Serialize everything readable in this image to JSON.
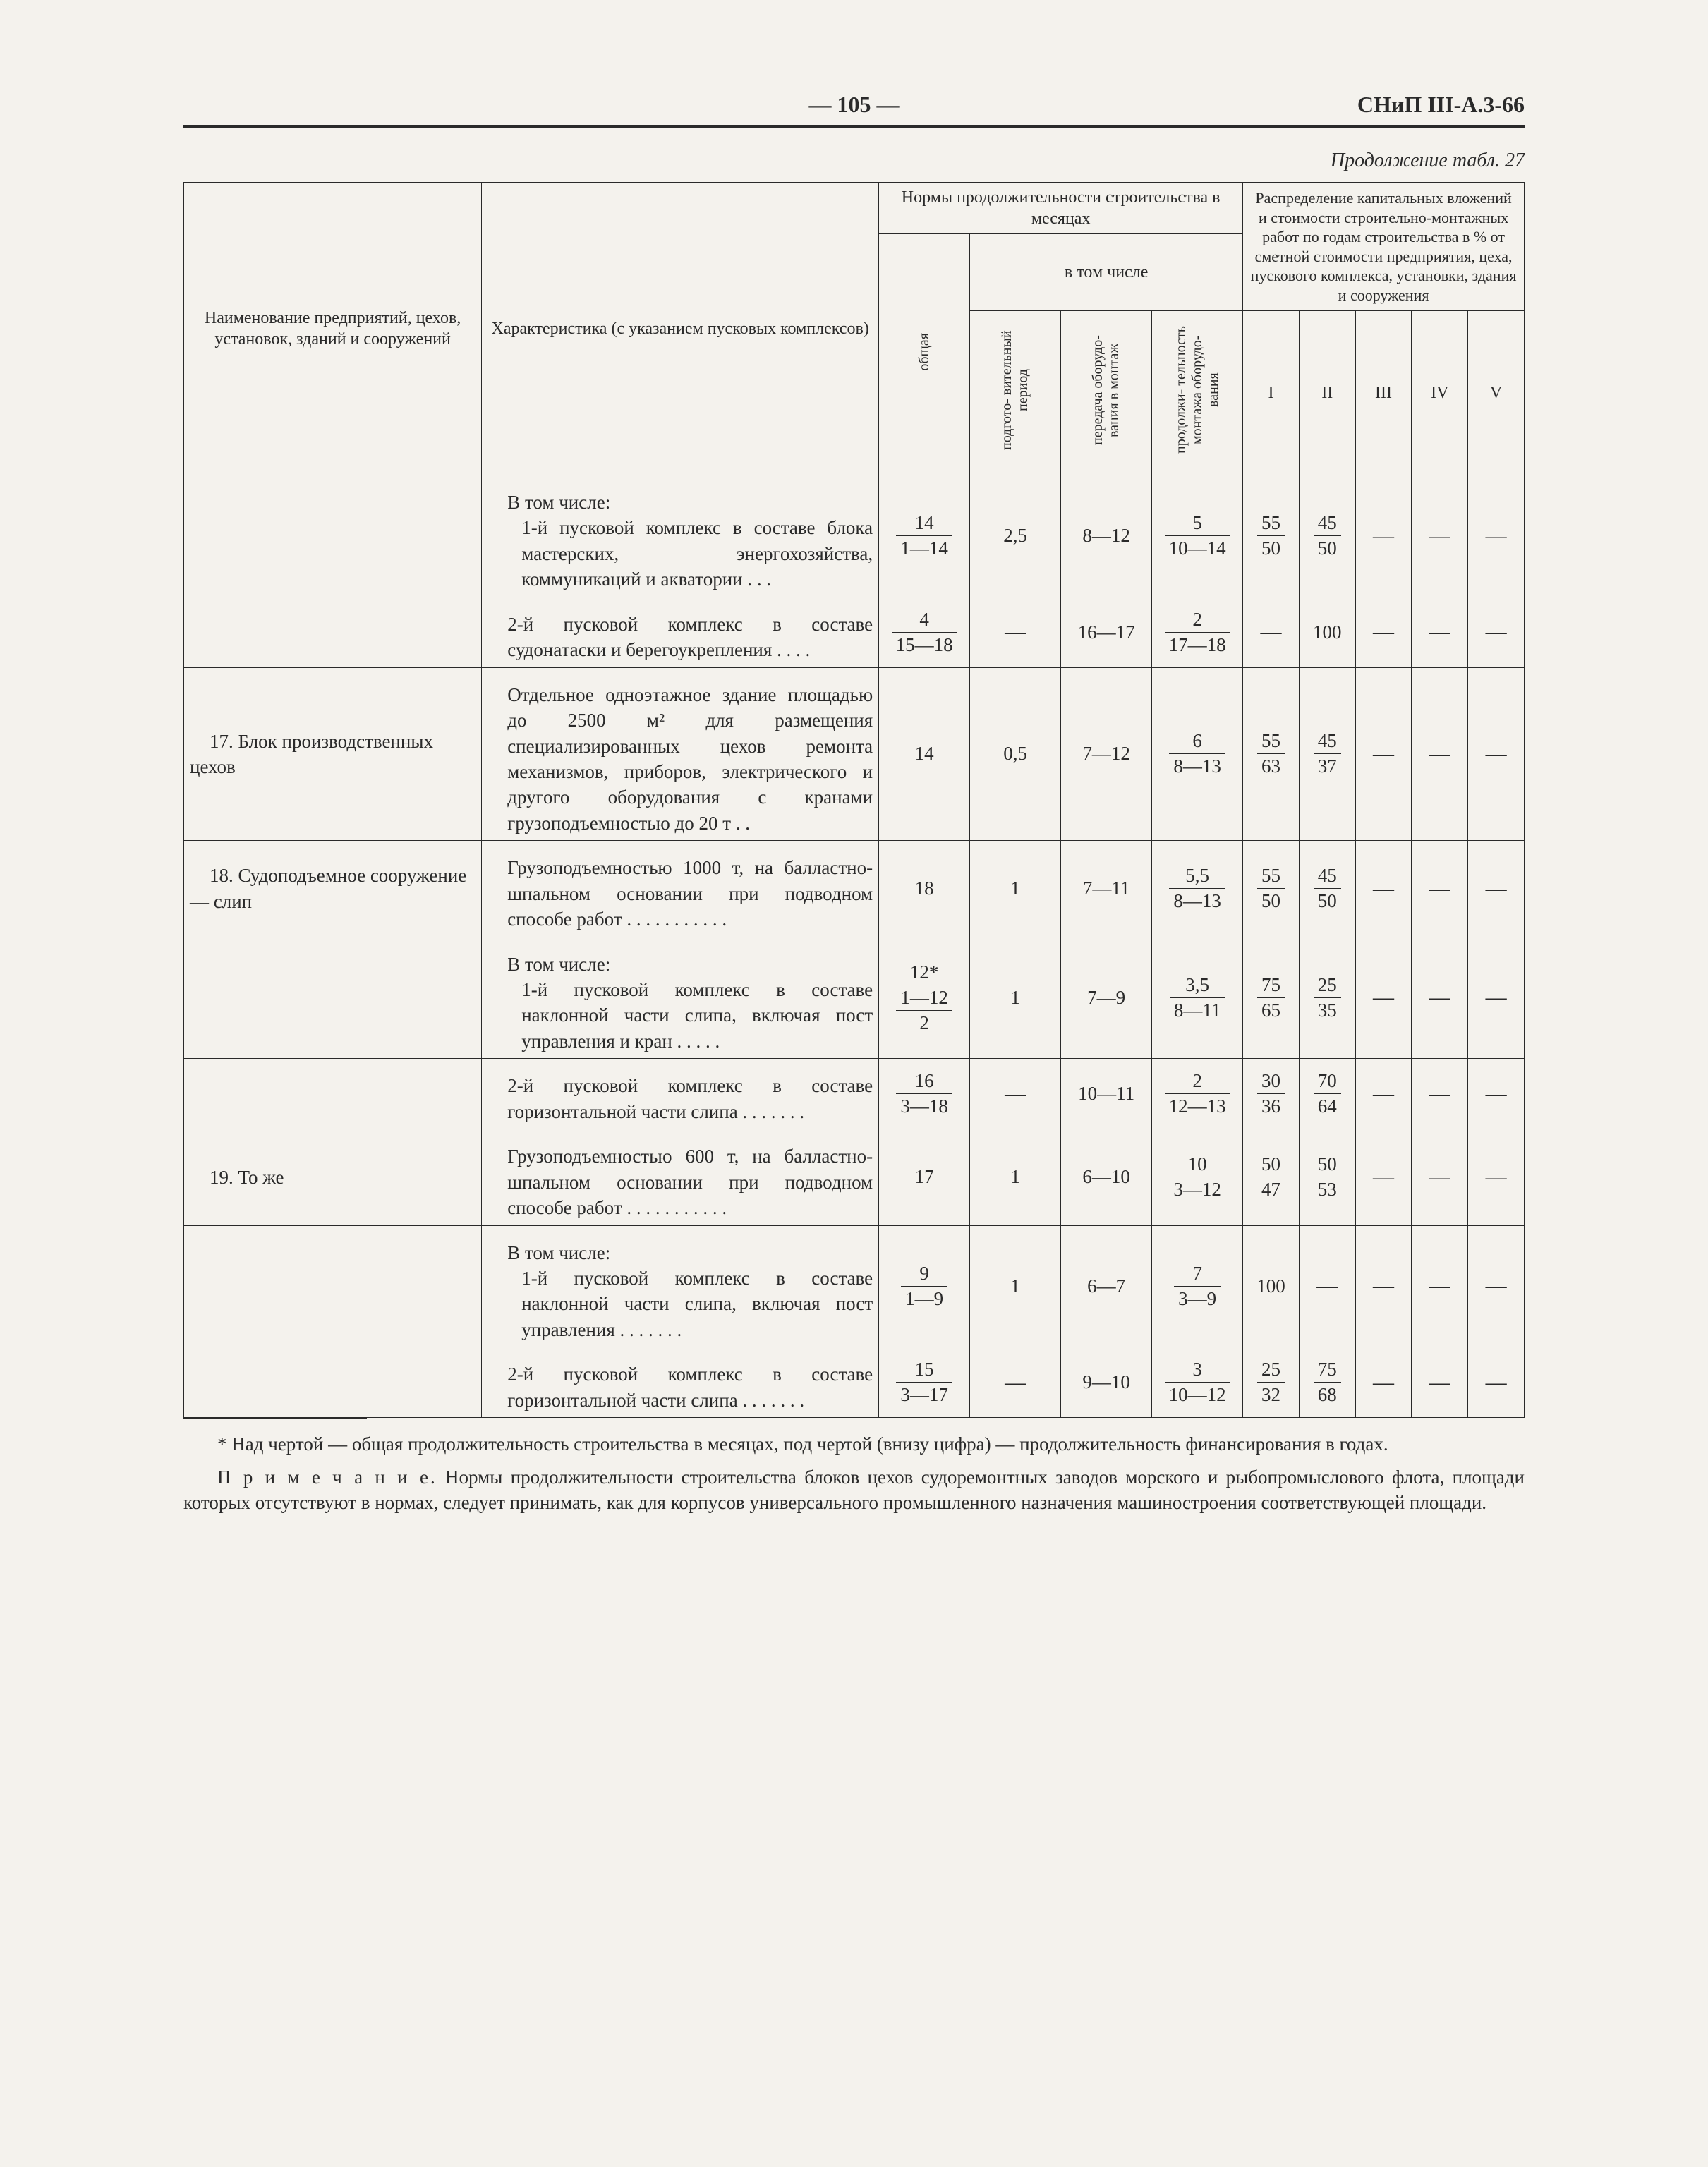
{
  "page_meta": {
    "page_number_label": "— 105 —",
    "doc_code": "СНиП III-А.3-66",
    "continuation_label": "Продолжение табл. 27"
  },
  "headers": {
    "col_name": "Наименование предприятий, цехов, установок, зданий и сооружений",
    "col_char": "Характеристика (с указанием пусковых комплексов)",
    "norms_group": "Нормы продолжительности строительства в месяцах",
    "inthat": "в   том числе",
    "total": "общая",
    "prep": "подгото-\nвительный\nпериод",
    "transfer": "передача\nоборудо-\nвания\nв монтаж",
    "duration": "продолжи-\nтельность\nмонтажа\nоборудо-\nвания",
    "dist_group": "Распределение капитальных вложений и стоимости строительно-монтажных работ по годам строительства в % от сметной стоимости предприятия, цеха, пускового комплекса, установки, здания и сооружения",
    "y1": "I",
    "y2": "II",
    "y3": "III",
    "y4": "IV",
    "y5": "V"
  },
  "rows": [
    {
      "name": "",
      "char_pre": "В том числе:",
      "char": "1-й пусковой комплекс в составе блока мастерских, энергохозяйства, коммуникаций и акватории  .  .  .",
      "total": {
        "n": "14",
        "d": "1—14"
      },
      "prep": "2,5",
      "transfer": "8—12",
      "dur": {
        "n": "5",
        "d": "10—14"
      },
      "y": [
        {
          "n": "55",
          "d": "50"
        },
        {
          "n": "45",
          "d": "50"
        },
        "—",
        "—",
        "—"
      ]
    },
    {
      "name": "",
      "char": "2-й пусковой комплекс в составе судонатаски и берегоукрепления   .   .   .   .",
      "total": {
        "n": "4",
        "d": "15—18"
      },
      "prep": "—",
      "transfer": "16—17",
      "dur": {
        "n": "2",
        "d": "17—18"
      },
      "y": [
        "—",
        "100",
        "—",
        "—",
        "—"
      ]
    },
    {
      "name": "17. Блок   производственных цехов",
      "char": "Отдельное одноэтажное здание площадью до 2500 м² для размещения специализированных цехов ремонта механизмов, приборов, электрического и другого оборудования с кранами грузоподъемностью до 20 т  .  .",
      "total": "14",
      "prep": "0,5",
      "transfer": "7—12",
      "dur": {
        "n": "6",
        "d": "8—13"
      },
      "y": [
        {
          "n": "55",
          "d": "63"
        },
        {
          "n": "45",
          "d": "37"
        },
        "—",
        "—",
        "—"
      ]
    },
    {
      "name": "18. Судоподъемное сооружение — слип",
      "char": "Грузоподъемностью   1000   т, на балластно-шпальном основании при подводном способе работ  .  .  .  .  .  .  .  .  .  .  .",
      "total": "18",
      "prep": "1",
      "transfer": "7—11",
      "dur": {
        "n": "5,5",
        "d": "8—13"
      },
      "y": [
        {
          "n": "55",
          "d": "50"
        },
        {
          "n": "45",
          "d": "50"
        },
        "—",
        "—",
        "—"
      ]
    },
    {
      "name": "",
      "char_pre": "В том числе:",
      "char": "1-й пусковой комплекс в составе наклонной части слипа, включая пост управления и кран  .  .  .  .  .",
      "total": {
        "n": "12*",
        "d": "1—12",
        "d2": "2"
      },
      "prep": "1",
      "transfer": "7—9",
      "dur": {
        "n": "3,5",
        "d": "8—11"
      },
      "y": [
        {
          "n": "75",
          "d": "65"
        },
        {
          "n": "25",
          "d": "35"
        },
        "—",
        "—",
        "—"
      ]
    },
    {
      "name": "",
      "char": "2-й пусковой комплекс в составе горизонтальной части слипа  .  .  .  .  .  .  .",
      "total": {
        "n": "16",
        "d": "3—18"
      },
      "prep": "—",
      "transfer": "10—11",
      "dur": {
        "n": "2",
        "d": "12—13"
      },
      "y": [
        {
          "n": "30",
          "d": "36"
        },
        {
          "n": "70",
          "d": "64"
        },
        "—",
        "—",
        "—"
      ]
    },
    {
      "name": "19. То же",
      "char": "Грузоподъемностью   600   т, на балластно-шпальном основании при подводном способе работ .  .  .  .  .  .  .  .  .  .  .",
      "total": "17",
      "prep": "1",
      "transfer": "6—10",
      "dur": {
        "n": "10",
        "d": "3—12"
      },
      "y": [
        {
          "n": "50",
          "d": "47"
        },
        {
          "n": "50",
          "d": "53"
        },
        "—",
        "—",
        "—"
      ]
    },
    {
      "name": "",
      "char_pre": "В том числе:",
      "char": "1-й пусковой комплекс в составе наклонной части слипа, включая пост управления    .  .  .  .  .  .  .",
      "total": {
        "n": "9",
        "d": "1—9"
      },
      "prep": "1",
      "transfer": "6—7",
      "dur": {
        "n": "7",
        "d": "3—9"
      },
      "y": [
        "100",
        "—",
        "—",
        "—",
        "—"
      ]
    },
    {
      "name": "",
      "char": "2-й пусковой комплекс в составе горизонтальной части слипа  .  .  .  .  .  .  .",
      "total": {
        "n": "15",
        "d": "3—17"
      },
      "prep": "—",
      "transfer": "9—10",
      "dur": {
        "n": "3",
        "d": "10—12"
      },
      "y": [
        {
          "n": "25",
          "d": "32"
        },
        {
          "n": "75",
          "d": "68"
        },
        "—",
        "—",
        "—"
      ]
    }
  ],
  "footnote": "* Над чертой — общая продолжительность строительства в месяцах, под чертой (внизу цифра) — продолжительность финансирования в годах.",
  "note_label": "П р и м е ч а н и е.",
  "note": " Нормы продолжительности строительства блоков цехов судоремонтных заводов морского и рыбопромыслового флота, площади которых отсутствуют в нормах, следует принимать, как для корпусов универсального промышленного назначения машиностроения  соответствующей площади."
}
